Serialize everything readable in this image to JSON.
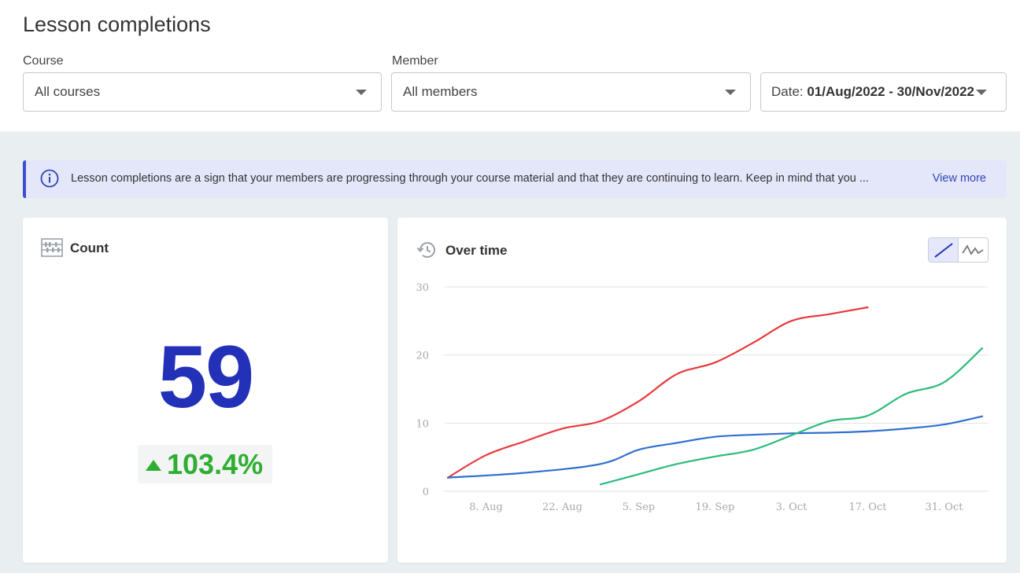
{
  "page": {
    "title": "Lesson completions"
  },
  "filters": {
    "course": {
      "label": "Course",
      "value": "All courses"
    },
    "member": {
      "label": "Member",
      "value": "All members"
    },
    "date": {
      "prefix": "Date: ",
      "value": "01/Aug/2022 - 30/Nov/2022"
    }
  },
  "banner": {
    "icon": "info-icon",
    "text": "Lesson completions are a sign that your members are progressing through your course material and that they are continuing to learn. Keep in mind that you ...",
    "link": "View more"
  },
  "count_card": {
    "title": "Count",
    "icon": "abacus-icon",
    "value": "59",
    "change": "103.4%",
    "change_direction": "up",
    "accent": "#2330b8",
    "positive_color": "#2fae33"
  },
  "time_card": {
    "title": "Over time",
    "icon": "history-icon",
    "view_toggle": [
      {
        "icon": "line-chart-icon",
        "active": true
      },
      {
        "icon": "spline-chart-icon",
        "active": false
      }
    ]
  },
  "chart_data": {
    "type": "line",
    "title": "",
    "xlabel": "",
    "ylabel": "",
    "ylim": [
      0,
      30
    ],
    "yticks": [
      0,
      10,
      20,
      30
    ],
    "xlim": [
      "2022-08-01",
      "2022-11-07"
    ],
    "xticks": [
      {
        "date": "2022-08-08",
        "label": "8. Aug"
      },
      {
        "date": "2022-08-22",
        "label": "22. Aug"
      },
      {
        "date": "2022-09-05",
        "label": "5. Sep"
      },
      {
        "date": "2022-09-19",
        "label": "19. Sep"
      },
      {
        "date": "2022-10-03",
        "label": "3. Oct"
      },
      {
        "date": "2022-10-17",
        "label": "17. Oct"
      },
      {
        "date": "2022-10-31",
        "label": "31. Oct"
      }
    ],
    "grid": true,
    "series": [
      {
        "color": "#e8393c",
        "points": [
          [
            "2022-08-01",
            2
          ],
          [
            "2022-08-08",
            5.3
          ],
          [
            "2022-08-15",
            7.3
          ],
          [
            "2022-08-22",
            9.2
          ],
          [
            "2022-08-29",
            10.3
          ],
          [
            "2022-09-05",
            13.2
          ],
          [
            "2022-09-12",
            17.2
          ],
          [
            "2022-09-19",
            18.9
          ],
          [
            "2022-09-26",
            21.8
          ],
          [
            "2022-10-03",
            25
          ],
          [
            "2022-10-10",
            26
          ],
          [
            "2022-10-17",
            27
          ]
        ]
      },
      {
        "color": "#2f6fce",
        "points": [
          [
            "2022-08-01",
            2
          ],
          [
            "2022-08-15",
            2.7
          ],
          [
            "2022-08-29",
            4
          ],
          [
            "2022-09-05",
            6.1
          ],
          [
            "2022-09-12",
            7.1
          ],
          [
            "2022-09-19",
            8
          ],
          [
            "2022-09-26",
            8.3
          ],
          [
            "2022-10-03",
            8.5
          ],
          [
            "2022-10-10",
            8.6
          ],
          [
            "2022-10-17",
            8.8
          ],
          [
            "2022-10-24",
            9.2
          ],
          [
            "2022-10-31",
            9.8
          ],
          [
            "2022-11-07",
            11
          ]
        ]
      },
      {
        "color": "#2dbb7d",
        "points": [
          [
            "2022-08-29",
            1
          ],
          [
            "2022-09-05",
            2.5
          ],
          [
            "2022-09-12",
            4
          ],
          [
            "2022-09-19",
            5.1
          ],
          [
            "2022-09-26",
            6.1
          ],
          [
            "2022-10-03",
            8.2
          ],
          [
            "2022-10-10",
            10.3
          ],
          [
            "2022-10-17",
            11.1
          ],
          [
            "2022-10-24",
            14.3
          ],
          [
            "2022-10-31",
            16
          ],
          [
            "2022-11-07",
            21
          ]
        ]
      }
    ]
  }
}
